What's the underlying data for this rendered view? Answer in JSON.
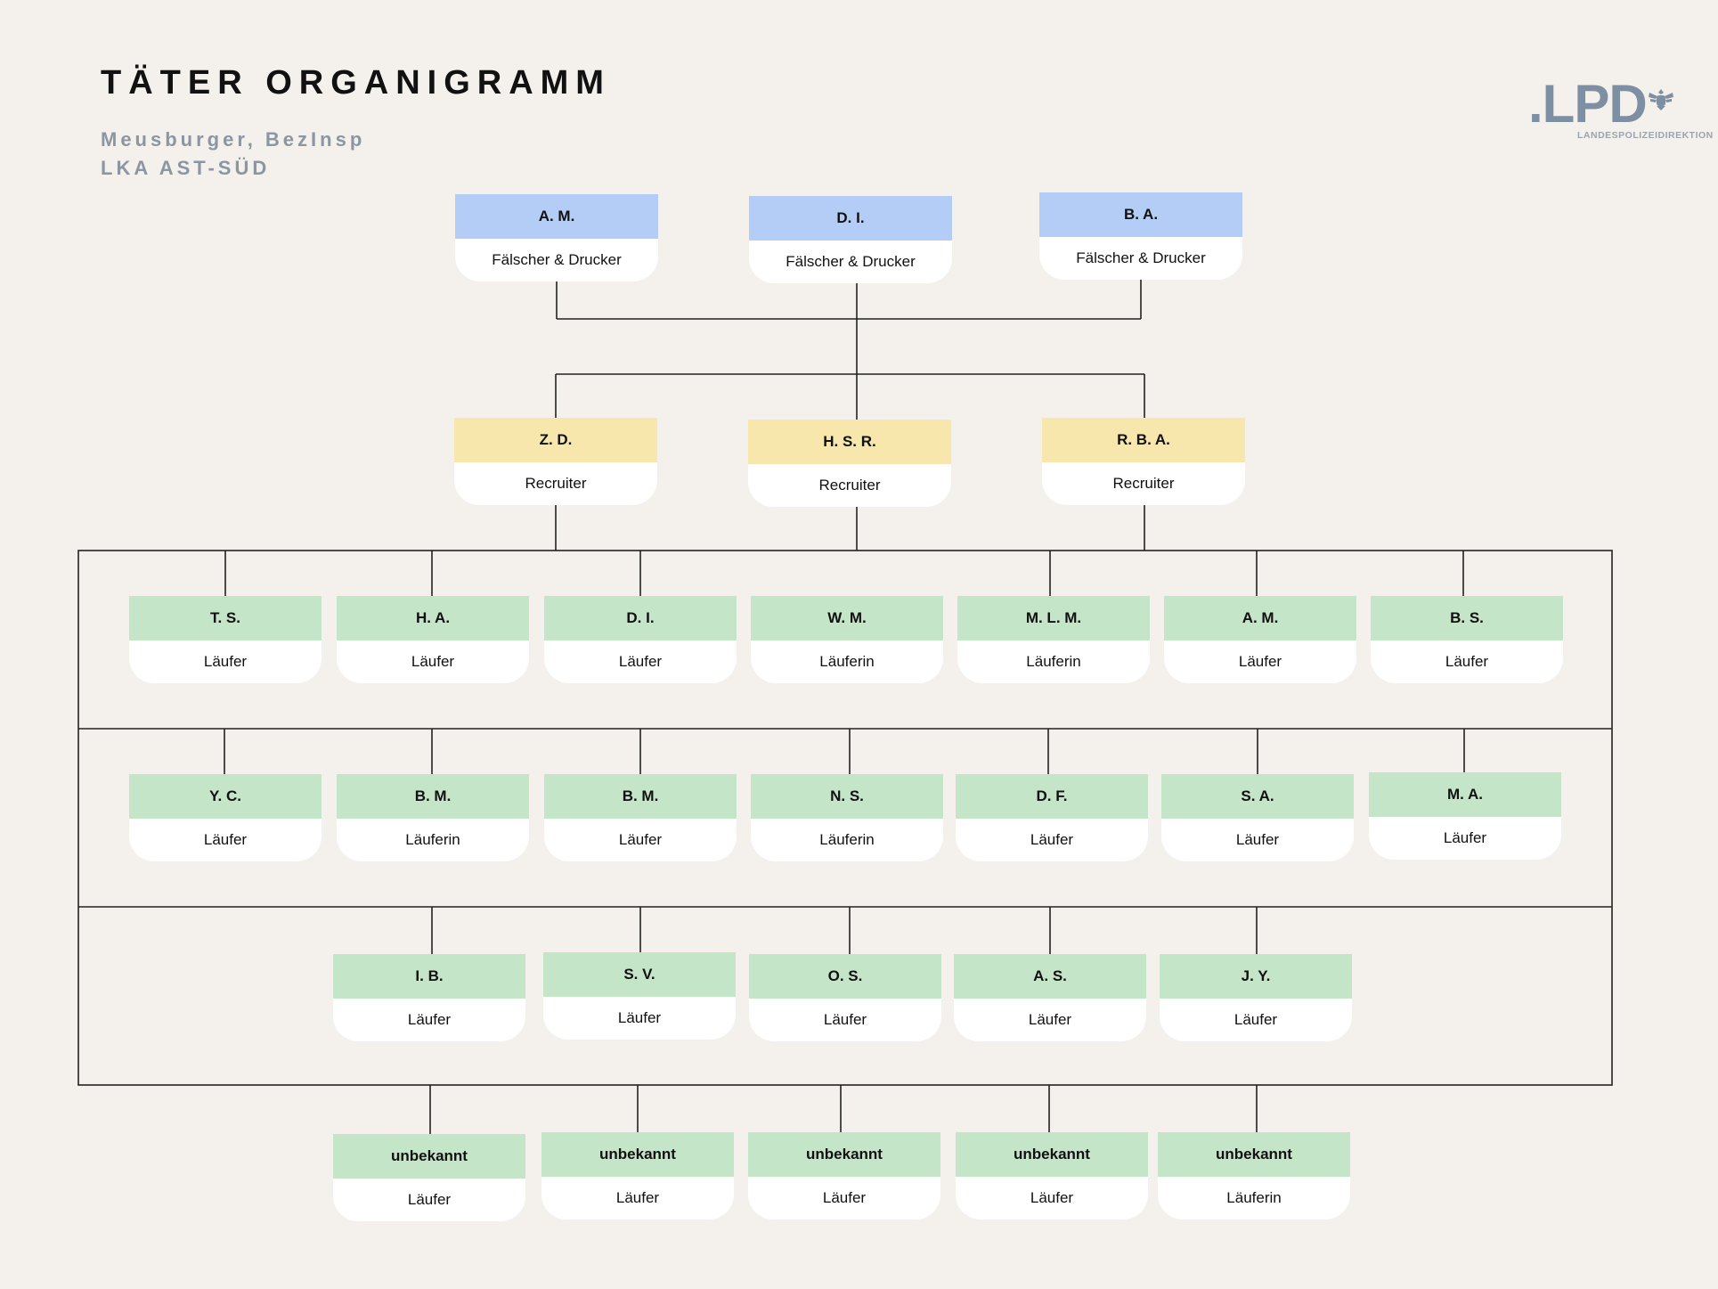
{
  "header": {
    "title": "TÄTER ORGANIGRAMM",
    "subtitle_line1": "Meusburger, BezInsp",
    "subtitle_line2": "LKA AST-SÜD"
  },
  "logo": {
    "text": ".LPD",
    "subtext": "LANDESPOLIZEIDIREKTION",
    "emblem_icon": "eagle-icon"
  },
  "colors": {
    "background": "#f4f0eb",
    "forger": "#b4cdf7",
    "recruiter": "#f7e7ad",
    "runner": "#c5e5c8",
    "card_body": "#ffffff",
    "line": "#222222"
  },
  "tiers": {
    "forgers": [
      {
        "name": "A. M.",
        "role": "Fälscher & Drucker"
      },
      {
        "name": "D. I.",
        "role": "Fälscher & Drucker"
      },
      {
        "name": "B. A.",
        "role": "Fälscher & Drucker"
      }
    ],
    "recruiters": [
      {
        "name": "Z. D.",
        "role": "Recruiter"
      },
      {
        "name": "H. S. R.",
        "role": "Recruiter"
      },
      {
        "name": "R. B. A.",
        "role": "Recruiter"
      }
    ],
    "runners_row1": [
      {
        "name": "T. S.",
        "role": "Läufer"
      },
      {
        "name": "H. A.",
        "role": "Läufer"
      },
      {
        "name": "D. I.",
        "role": "Läufer"
      },
      {
        "name": "W. M.",
        "role": "Läuferin"
      },
      {
        "name": "M. L. M.",
        "role": "Läuferin"
      },
      {
        "name": "A. M.",
        "role": "Läufer"
      },
      {
        "name": "B. S.",
        "role": "Läufer"
      }
    ],
    "runners_row2": [
      {
        "name": "Y. C.",
        "role": "Läufer"
      },
      {
        "name": "B. M.",
        "role": "Läuferin"
      },
      {
        "name": "B. M.",
        "role": "Läufer"
      },
      {
        "name": "N. S.",
        "role": "Läuferin"
      },
      {
        "name": "D. F.",
        "role": "Läufer"
      },
      {
        "name": "S. A.",
        "role": "Läufer"
      },
      {
        "name": "M. A.",
        "role": "Läufer"
      }
    ],
    "runners_row3": [
      {
        "name": "I. B.",
        "role": "Läufer"
      },
      {
        "name": "S. V.",
        "role": "Läufer"
      },
      {
        "name": "O. S.",
        "role": "Läufer"
      },
      {
        "name": "A. S.",
        "role": "Läufer"
      },
      {
        "name": "J. Y.",
        "role": "Läufer"
      }
    ],
    "runners_row4": [
      {
        "name": "unbekannt",
        "role": "Läufer"
      },
      {
        "name": "unbekannt",
        "role": "Läufer"
      },
      {
        "name": "unbekannt",
        "role": "Läufer"
      },
      {
        "name": "unbekannt",
        "role": "Läufer"
      },
      {
        "name": "unbekannt",
        "role": "Läuferin"
      }
    ]
  }
}
